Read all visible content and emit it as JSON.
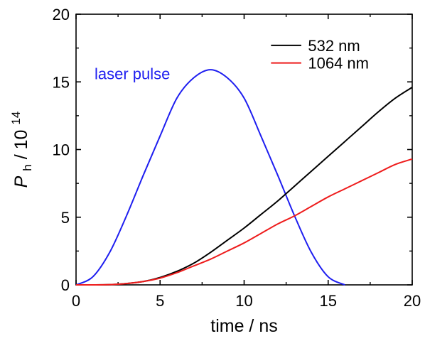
{
  "chart_data": {
    "type": "line",
    "xlabel": "time / ns",
    "ylabel": {
      "base": "P",
      "sub": "h",
      "unit": " / 10",
      "exp": "14"
    },
    "xlim": [
      0,
      20
    ],
    "ylim": [
      0,
      20
    ],
    "xticks": [
      "0",
      "5",
      "10",
      "15",
      "20"
    ],
    "yticks": [
      "0",
      "5",
      "10",
      "15",
      "20"
    ],
    "grid": false,
    "legend_position": "top-right",
    "series": [
      {
        "name": "532 nm",
        "color": "#000000",
        "x": [
          0,
          1,
          2,
          3,
          4,
          5,
          6,
          7,
          8,
          9,
          10,
          11,
          12,
          13,
          14,
          15,
          16,
          17,
          18,
          19,
          20
        ],
        "y": [
          0,
          0,
          0.02,
          0.1,
          0.25,
          0.55,
          1.0,
          1.6,
          2.4,
          3.3,
          4.2,
          5.2,
          6.2,
          7.3,
          8.4,
          9.5,
          10.6,
          11.7,
          12.8,
          13.8,
          14.6
        ]
      },
      {
        "name": "1064 nm",
        "color": "#ee1c1c",
        "x": [
          0,
          1,
          2,
          3,
          4,
          5,
          6,
          7,
          8,
          9,
          10,
          11,
          12,
          13,
          14,
          15,
          16,
          17,
          18,
          19,
          20
        ],
        "y": [
          0,
          0,
          0.02,
          0.1,
          0.25,
          0.5,
          0.9,
          1.4,
          1.9,
          2.5,
          3.1,
          3.8,
          4.5,
          5.1,
          5.8,
          6.5,
          7.1,
          7.7,
          8.3,
          8.9,
          9.3
        ]
      }
    ],
    "annotation": {
      "text": "laser pulse",
      "color": "#1e1ef0",
      "series": {
        "color": "#1e1ef0",
        "x": [
          0,
          1,
          2,
          3,
          4,
          5,
          6,
          7,
          8,
          9,
          10,
          11,
          12,
          13,
          14,
          15,
          16
        ],
        "y": [
          0,
          0.6,
          2.4,
          5.1,
          8.1,
          11.0,
          13.8,
          15.3,
          15.9,
          15.3,
          13.8,
          11.0,
          8.1,
          5.1,
          2.4,
          0.6,
          0
        ]
      }
    }
  }
}
